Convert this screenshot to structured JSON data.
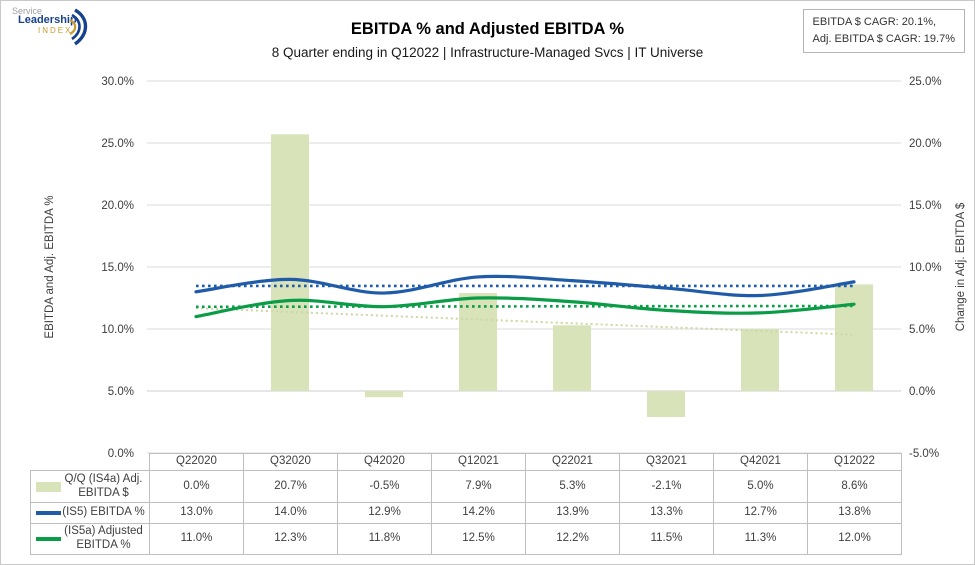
{
  "logo": {
    "line1": "Service",
    "line2": "Leadership",
    "line3": "INDEX"
  },
  "header": {
    "title": "EBITDA % and Adjusted EBITDA %",
    "subtitle": "8 Quarter ending in Q12022 | Infrastructure-Managed Svcs | IT Universe",
    "cagr_line1": "EBITDA $ CAGR: 20.1%,",
    "cagr_line2": "Adj. EBITDA $ CAGR: 19.7%"
  },
  "colors": {
    "bar_fill": "#d9e3ba",
    "bar_trend": "#cbd8a0",
    "blue_line": "#1f5ba8",
    "green_line": "#0a9c47",
    "grid": "#e2e2e2",
    "baseline": "#d8d8d8",
    "axis_text": "#3d3d3d",
    "table_border": "#bfbfbf"
  },
  "chart_data": {
    "type": "combo",
    "categories": [
      "Q22020",
      "Q32020",
      "Q42020",
      "Q12021",
      "Q22021",
      "Q32021",
      "Q42021",
      "Q12022"
    ],
    "series": [
      {
        "name": "Q/Q (IS4a) Adj. EBITDA $",
        "type": "bar",
        "axis": "right",
        "values": [
          0.0,
          20.7,
          -0.5,
          7.9,
          5.3,
          -2.1,
          5.0,
          8.6
        ],
        "labels": [
          "0.0%",
          "20.7%",
          "-0.5%",
          "7.9%",
          "5.3%",
          "-2.1%",
          "5.0%",
          "8.6%"
        ],
        "trendline": true
      },
      {
        "name": "(IS5) EBITDA %",
        "type": "line",
        "axis": "left",
        "values": [
          13.0,
          14.0,
          12.9,
          14.2,
          13.9,
          13.3,
          12.7,
          13.8
        ],
        "labels": [
          "13.0%",
          "14.0%",
          "12.9%",
          "14.2%",
          "13.9%",
          "13.3%",
          "12.7%",
          "13.8%"
        ],
        "trendline": true
      },
      {
        "name": "(IS5a) Adjusted EBITDA %",
        "type": "line",
        "axis": "left",
        "values": [
          11.0,
          12.3,
          11.8,
          12.5,
          12.2,
          11.5,
          11.3,
          12.0
        ],
        "labels": [
          "11.0%",
          "12.3%",
          "11.8%",
          "12.5%",
          "12.2%",
          "11.5%",
          "11.3%",
          "12.0%"
        ],
        "trendline": true
      }
    ],
    "left_axis": {
      "title": "EBITDA and Adj. EBITDA %",
      "min": 0,
      "max": 30,
      "tick_labels": [
        "30.0%",
        "25.0%",
        "20.0%",
        "15.0%",
        "10.0%",
        "5.0%",
        "0.0%"
      ],
      "tick_values": [
        30,
        25,
        20,
        15,
        10,
        5,
        0
      ]
    },
    "right_axis": {
      "title": "Change in Adj. EBITDA $",
      "min": -5,
      "max": 25,
      "tick_labels": [
        "25.0%",
        "20.0%",
        "15.0%",
        "10.0%",
        "5.0%",
        "0.0%",
        "-5.0%"
      ],
      "tick_values": [
        25,
        20,
        15,
        10,
        5,
        0,
        -5
      ]
    },
    "grid": true,
    "legend_position": "table-bottom"
  }
}
